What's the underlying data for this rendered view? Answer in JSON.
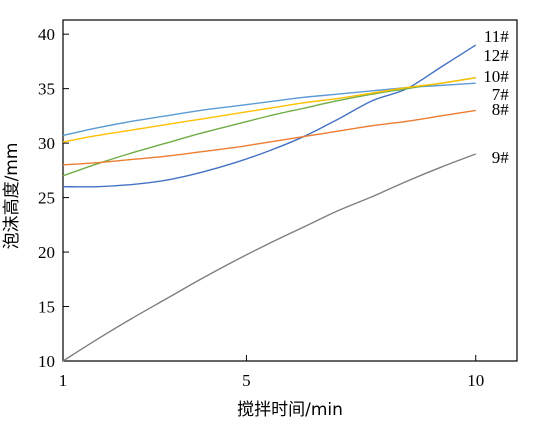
{
  "chart_data": {
    "type": "line",
    "xlabel": "搅拌时间/min",
    "ylabel": "泡沫高度/mm",
    "xlim": [
      1,
      10.9
    ],
    "ylim": [
      10,
      41.3
    ],
    "x_ticks": [
      1,
      5,
      10
    ],
    "y_ticks": [
      10,
      15,
      20,
      25,
      30,
      35,
      40
    ],
    "grid": false,
    "legend": "none",
    "series": [
      {
        "name": "11#",
        "color": "#4472c4",
        "x": [
          1,
          1.75,
          2.5,
          3.25,
          4,
          4.75,
          5.5,
          6.25,
          7,
          7.75,
          8.5,
          9.25,
          10
        ],
        "y": [
          26.0,
          26.0,
          26.2,
          26.6,
          27.3,
          28.2,
          29.3,
          30.6,
          32.2,
          33.9,
          35.0,
          37.0,
          39.0
        ]
      },
      {
        "name": "12#",
        "color": "#5b9bd5",
        "x": [
          1,
          1.75,
          2.5,
          3.25,
          4,
          4.75,
          5.5,
          6.25,
          7,
          7.75,
          8.5,
          9.25,
          10
        ],
        "y": [
          30.7,
          31.4,
          32.0,
          32.5,
          33.0,
          33.4,
          33.8,
          34.2,
          34.5,
          34.8,
          35.1,
          35.3,
          35.5
        ]
      },
      {
        "name": "10#",
        "color": "#70ad47",
        "x": [
          1,
          1.75,
          2.5,
          3.25,
          4,
          4.75,
          5.5,
          6.25,
          7,
          7.75,
          8.5,
          9.25,
          10
        ],
        "y": [
          27.0,
          28.1,
          29.1,
          30.0,
          30.9,
          31.7,
          32.5,
          33.2,
          33.9,
          34.5,
          35.0,
          35.5,
          36.0
        ]
      },
      {
        "name": "7#",
        "color": "#ffc000",
        "x": [
          1,
          1.75,
          2.5,
          3.25,
          4,
          4.75,
          5.5,
          6.25,
          7,
          7.75,
          8.5,
          9.25,
          10
        ],
        "y": [
          30.1,
          30.7,
          31.2,
          31.7,
          32.2,
          32.7,
          33.2,
          33.7,
          34.1,
          34.6,
          35.1,
          35.5,
          36.0
        ]
      },
      {
        "name": "8#",
        "color": "#ed7d31",
        "x": [
          1,
          1.75,
          2.5,
          3.25,
          4,
          4.75,
          5.5,
          6.25,
          7,
          7.75,
          8.5,
          9.25,
          10
        ],
        "y": [
          28.0,
          28.2,
          28.5,
          28.8,
          29.2,
          29.6,
          30.1,
          30.6,
          31.1,
          31.6,
          32.0,
          32.5,
          33.0
        ]
      },
      {
        "name": "9#",
        "color": "#7f7f7f",
        "x": [
          1,
          1.75,
          2.5,
          3.25,
          4,
          4.75,
          5.5,
          6.25,
          7,
          7.75,
          8.5,
          9.25,
          10
        ],
        "y": [
          10.0,
          12.0,
          13.9,
          15.7,
          17.5,
          19.2,
          20.8,
          22.3,
          23.8,
          25.1,
          26.5,
          27.8,
          29.0
        ]
      }
    ]
  }
}
